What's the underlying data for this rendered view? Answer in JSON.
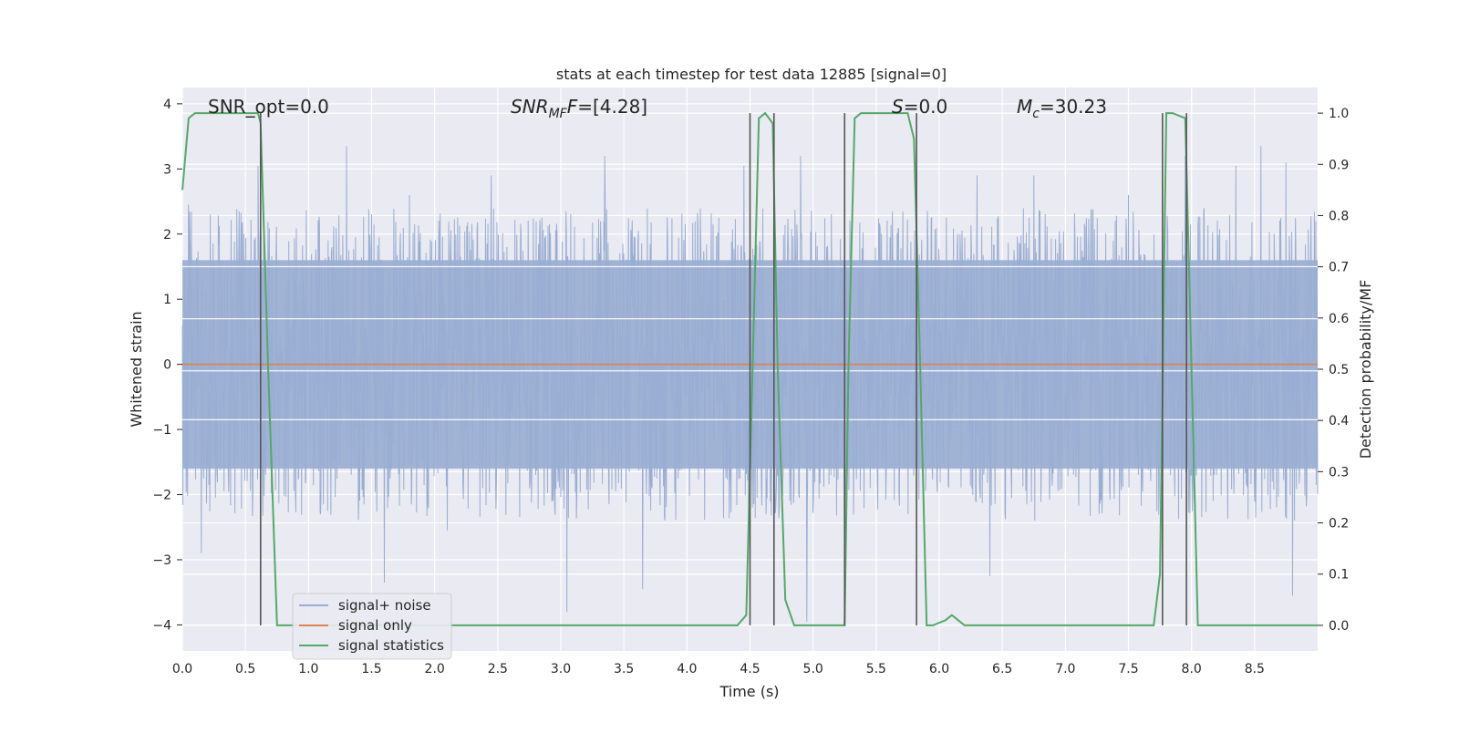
{
  "chart_data": {
    "type": "line",
    "title": "stats at each timestep for test data 12885 [signal=0]",
    "xlabel": "Time (s)",
    "ylabel": "Whitened strain",
    "y2label": "Detection probability/MF",
    "xlim": [
      0.0,
      9.0
    ],
    "ylim": [
      -4.4,
      4.25
    ],
    "y2lim": [
      -0.05,
      1.05
    ],
    "xticks": [
      "0.0",
      "0.5",
      "1.0",
      "1.5",
      "2.0",
      "2.5",
      "3.0",
      "3.5",
      "4.0",
      "4.5",
      "5.0",
      "5.5",
      "6.0",
      "6.5",
      "7.0",
      "7.5",
      "8.0",
      "8.5"
    ],
    "yticks": [
      "4",
      "3",
      "2",
      "1",
      "0",
      "−1",
      "−2",
      "−3",
      "−4"
    ],
    "y2ticks": [
      "1.0",
      "0.9",
      "0.8",
      "0.7",
      "0.6",
      "0.5",
      "0.4",
      "0.3",
      "0.2",
      "0.1",
      "0.0"
    ],
    "grid": true,
    "legend_position": "lower-left",
    "annotations": [
      {
        "key": "snr_opt",
        "text": "SNR_opt=0.0"
      },
      {
        "key": "snr_mf",
        "text": "SNR",
        "sub": "MF",
        "suffix": "F=[4.28]",
        "italic": true
      },
      {
        "key": "s",
        "text": "S",
        "suffix": "=0.0",
        "italic": true
      },
      {
        "key": "mc",
        "text": "M",
        "sub": "c",
        "suffix": "=30.23",
        "italic": true
      }
    ],
    "colors": {
      "noise": "#9aaed2",
      "signal_only": "#dd8452",
      "statistics": "#55a868",
      "markers": "#555555",
      "background": "#eaeaf2",
      "grid": "#ffffff"
    },
    "series": [
      {
        "name": "signal+ noise",
        "axis": "left",
        "description_values": "whitened noise, roughly symmetric with typical envelope ±1.6 and peaks near ±3.4",
        "envelope": [
          1.6,
          -1.6
        ],
        "peaks_up": [
          [
            0.05,
            2.45
          ],
          [
            0.22,
            2.3
          ],
          [
            0.45,
            2.35
          ],
          [
            0.6,
            3.05
          ],
          [
            1.3,
            3.35
          ],
          [
            1.8,
            2.6
          ],
          [
            2.45,
            2.9
          ],
          [
            3.35,
            3.2
          ],
          [
            4.45,
            3.05
          ],
          [
            4.9,
            3.2
          ],
          [
            5.25,
            3.0
          ],
          [
            6.3,
            2.9
          ],
          [
            6.75,
            2.9
          ],
          [
            7.5,
            2.6
          ],
          [
            7.95,
            3.2
          ],
          [
            8.35,
            3.05
          ],
          [
            8.55,
            3.35
          ],
          [
            8.75,
            3.1
          ]
        ],
        "peaks_down": [
          [
            0.15,
            -2.9
          ],
          [
            1.6,
            -3.35
          ],
          [
            2.1,
            -2.55
          ],
          [
            3.05,
            -3.8
          ],
          [
            3.65,
            -3.45
          ],
          [
            4.95,
            -3.95
          ],
          [
            5.25,
            -3.05
          ],
          [
            6.4,
            -3.25
          ],
          [
            8.8,
            -3.55
          ]
        ]
      },
      {
        "name": "signal only",
        "axis": "left",
        "x": [
          0.0,
          9.0
        ],
        "y": [
          0.0,
          0.0
        ]
      },
      {
        "name": "signal statistics",
        "axis": "right",
        "x": [
          0.0,
          0.05,
          0.1,
          0.6,
          0.62,
          0.68,
          0.75,
          0.8,
          4.4,
          4.47,
          4.52,
          4.57,
          4.62,
          4.68,
          4.72,
          4.78,
          4.85,
          4.92,
          5.25,
          5.28,
          5.33,
          5.38,
          5.45,
          5.75,
          5.8,
          5.85,
          5.9,
          5.95,
          6.05,
          6.1,
          6.15,
          6.2,
          6.3,
          6.5,
          7.7,
          7.75,
          7.8,
          7.85,
          7.95,
          8.0,
          8.05,
          9.0
        ],
        "y": [
          0.85,
          0.99,
          1.0,
          1.0,
          0.98,
          0.5,
          0.0,
          0.0,
          0.0,
          0.02,
          0.5,
          0.99,
          1.0,
          0.98,
          0.5,
          0.05,
          0.0,
          0.0,
          0.0,
          0.5,
          0.99,
          1.0,
          1.0,
          1.0,
          0.95,
          0.5,
          0.0,
          0.0,
          0.01,
          0.02,
          0.01,
          0.0,
          0.0,
          0.0,
          0.0,
          0.1,
          1.0,
          1.0,
          0.99,
          0.5,
          0.0,
          0.0
        ]
      }
    ],
    "vertical_markers": [
      0.62,
      4.5,
      4.69,
      5.25,
      5.82,
      7.77,
      7.96
    ],
    "legend": [
      "signal+ noise",
      "signal only",
      "signal statistics"
    ]
  }
}
